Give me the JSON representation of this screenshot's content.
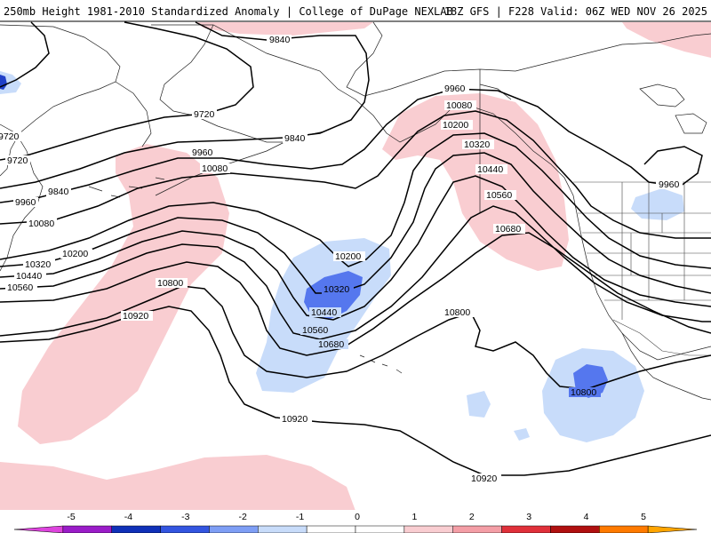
{
  "header": {
    "left": "250mb Height 1981-2010 Standardized Anomaly | College of DuPage NEXLAB",
    "right": "18Z GFS | F228 Valid: 06Z WED NOV 26 2025"
  },
  "contours": [
    {
      "id": "c9720",
      "label": "9720"
    },
    {
      "id": "c9840",
      "label": "9840"
    },
    {
      "id": "c9960",
      "label": "9960"
    },
    {
      "id": "c10080",
      "label": "10080"
    },
    {
      "id": "c10200",
      "label": "10200"
    },
    {
      "id": "c10320",
      "label": "10320"
    },
    {
      "id": "c10440",
      "label": "10440"
    },
    {
      "id": "c10560",
      "label": "10560"
    },
    {
      "id": "c10680",
      "label": "10680"
    },
    {
      "id": "c10800",
      "label": "10800"
    },
    {
      "id": "c10920",
      "label": "10920"
    }
  ],
  "colorbar": {
    "ticks": [
      "-5",
      "-4",
      "-3",
      "-2",
      "-1",
      "0",
      "1",
      "2",
      "3",
      "4",
      "5"
    ],
    "colors": [
      "#dd44dd",
      "#9a1cc8",
      "#1030b8",
      "#3355e0",
      "#7e9ef5",
      "#c8dcfa",
      "#ffffff",
      "#ffffff",
      "#f9cdd1",
      "#f49ea6",
      "#e0303a",
      "#b01010",
      "#ff7a00",
      "#ffa500"
    ]
  },
  "anomaly_colors": {
    "pos1": "#f9cdd1",
    "neg1": "#c8dcfa",
    "neg2": "#5577ee"
  }
}
